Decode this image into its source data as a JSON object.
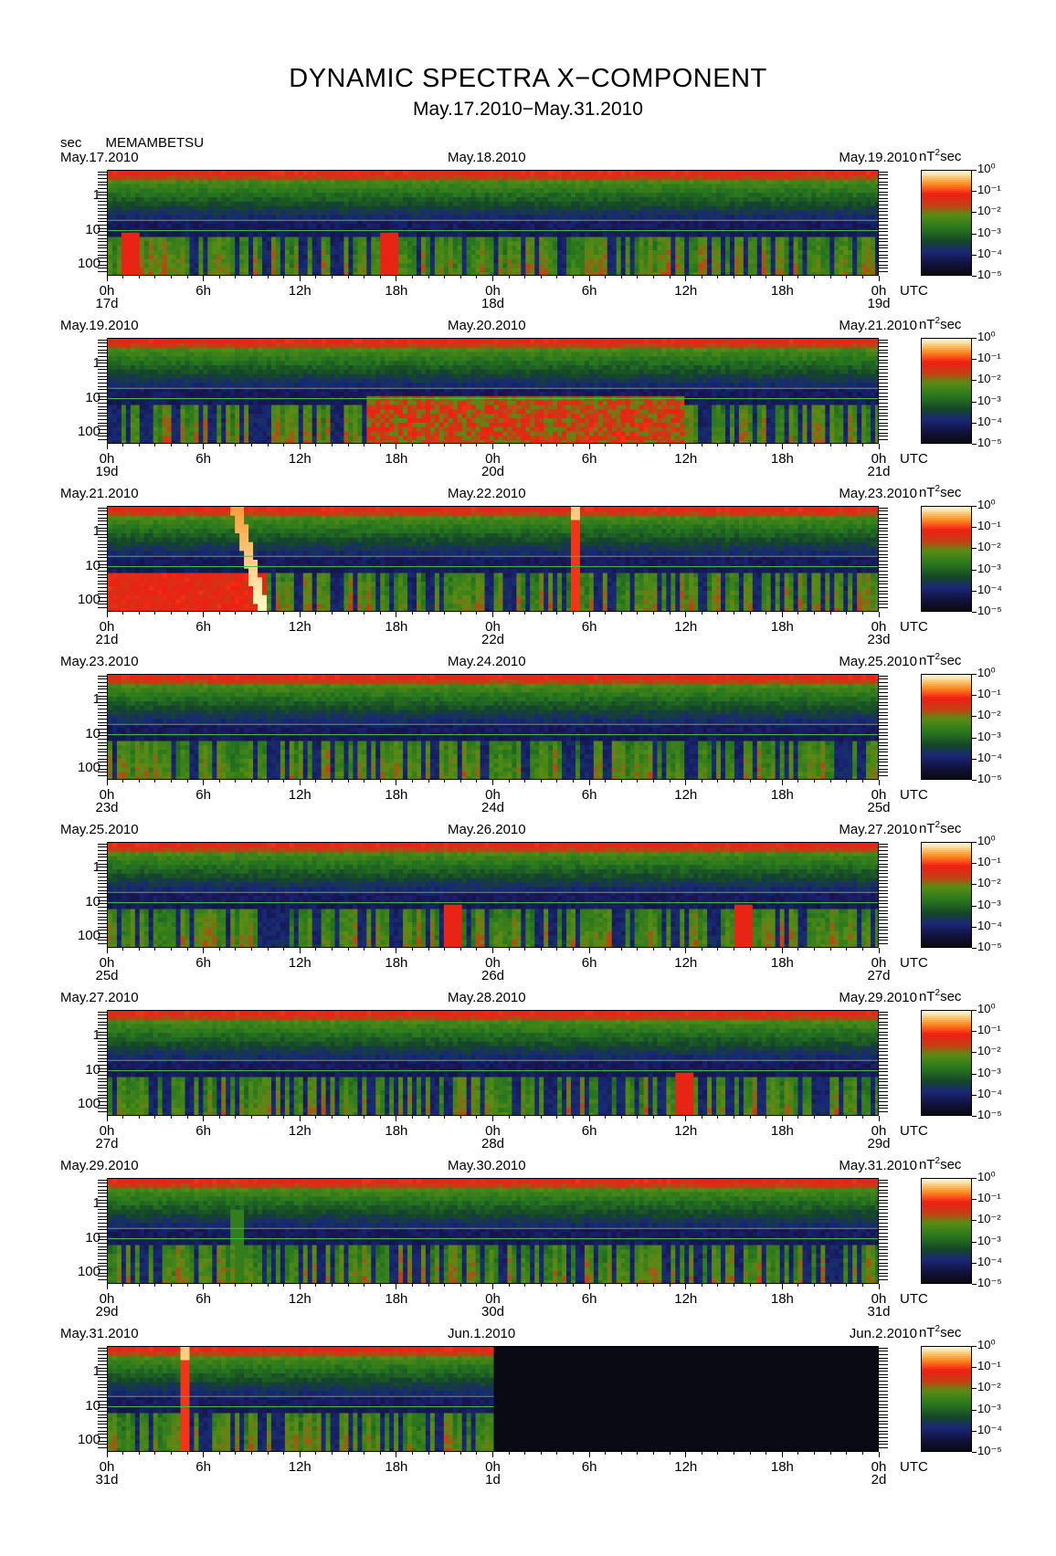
{
  "chart_data": {
    "type": "heatmap",
    "title": "DYNAMIC SPECTRA X−COMPONENT",
    "subtitle": "May.17.2010−May.31.2010",
    "station": "MEMAMBETSU",
    "y_unit": "sec",
    "colorbar_unit": "nT²sec",
    "colorbar_unit_base": "nT",
    "colorbar_unit_sup": "2",
    "colorbar_unit_tail": "sec",
    "colorbar_labels": [
      "10⁰",
      "10⁻¹",
      "10⁻²",
      "10⁻³",
      "10⁻⁴",
      "10⁻⁵"
    ],
    "colorbar_range": [
      1e-05,
      1
    ],
    "y_ticks": [
      "1",
      "10",
      "100"
    ],
    "x_ticks": [
      "0h",
      "6h",
      "12h",
      "18h",
      "0h",
      "6h",
      "12h",
      "18h",
      "0h"
    ],
    "x_unit": "UTC",
    "panels": [
      {
        "left_date": "May.17.2010",
        "mid_date": "May.18.2010",
        "right_date": "May.19.2010",
        "day_labels": [
          "17d",
          "18d",
          "19d"
        ],
        "events": [
          {
            "t": 17.5,
            "kind": "red"
          },
          {
            "t": 1.5,
            "kind": "red"
          }
        ],
        "data_end": 48
      },
      {
        "left_date": "May.19.2010",
        "mid_date": "May.20.2010",
        "right_date": "May.21.2010",
        "day_labels": [
          "19d",
          "20d",
          "21d"
        ],
        "events": [
          {
            "t": 26,
            "kind": "broad"
          }
        ],
        "data_end": 48
      },
      {
        "left_date": "May.21.2010",
        "mid_date": "May.22.2010",
        "right_date": "May.23.2010",
        "day_labels": [
          "21d",
          "22d",
          "23d"
        ],
        "events": [
          {
            "t": 8,
            "kind": "dispersed"
          },
          {
            "t": 29,
            "kind": "spike"
          }
        ],
        "data_end": 48
      },
      {
        "left_date": "May.23.2010",
        "mid_date": "May.24.2010",
        "right_date": "May.25.2010",
        "day_labels": [
          "23d",
          "24d",
          "25d"
        ],
        "events": [],
        "data_end": 48
      },
      {
        "left_date": "May.25.2010",
        "mid_date": "May.26.2010",
        "right_date": "May.27.2010",
        "day_labels": [
          "25d",
          "26d",
          "27d"
        ],
        "events": [
          {
            "t": 21.5,
            "kind": "red"
          },
          {
            "t": 39.5,
            "kind": "red"
          }
        ],
        "data_end": 48
      },
      {
        "left_date": "May.27.2010",
        "mid_date": "May.28.2010",
        "right_date": "May.29.2010",
        "day_labels": [
          "27d",
          "28d",
          "29d"
        ],
        "events": [
          {
            "t": 35.8,
            "kind": "red"
          }
        ],
        "data_end": 48
      },
      {
        "left_date": "May.29.2010",
        "mid_date": "May.30.2010",
        "right_date": "May.31.2010",
        "day_labels": [
          "29d",
          "30d",
          "31d"
        ],
        "events": [
          {
            "t": 8,
            "kind": "green"
          }
        ],
        "data_end": 48
      },
      {
        "left_date": "May.31.2010",
        "mid_date": "Jun.1.2010",
        "right_date": "Jun.2.2010",
        "day_labels": [
          "31d",
          "1d",
          "2d"
        ],
        "events": [
          {
            "t": 4.8,
            "kind": "spike"
          }
        ],
        "data_end": 24
      }
    ]
  }
}
